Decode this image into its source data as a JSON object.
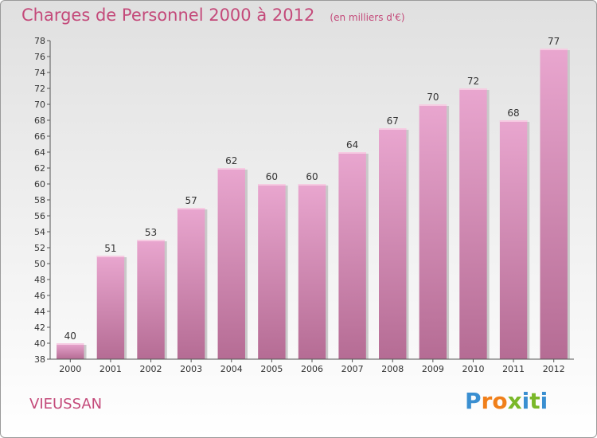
{
  "header": {
    "title": "Charges de Personnel 2000 à 2012",
    "subtitle": "(en milliers d'€)"
  },
  "footer": {
    "commune": "VIEUSSAN",
    "logo_letters": [
      "P",
      "r",
      "o",
      "x",
      "i",
      "t",
      "i"
    ],
    "logo_colors": [
      "#3a8fd1",
      "#f07f1a",
      "#f07f1a",
      "#7ab829",
      "#3a8fd1",
      "#7ab829",
      "#3a8fd1"
    ]
  },
  "colors": {
    "bar_top": "#e9a6cf",
    "bar_bottom": "#b56c94",
    "text": "#c44a7a",
    "axis": "#555555"
  },
  "chart_data": {
    "type": "bar",
    "title": "Charges de Personnel 2000 à 2012",
    "subtitle": "(en milliers d'€)",
    "categories": [
      "2000",
      "2001",
      "2002",
      "2003",
      "2004",
      "2005",
      "2006",
      "2007",
      "2008",
      "2009",
      "2010",
      "2011",
      "2012"
    ],
    "values": [
      40,
      51,
      53,
      57,
      62,
      60,
      60,
      64,
      67,
      70,
      72,
      68,
      77
    ],
    "data_labels": [
      "40",
      "51",
      "53",
      "57",
      "62",
      "60",
      "60",
      "64",
      "67",
      "70",
      "72",
      "68",
      "77"
    ],
    "ylim": [
      38,
      78
    ],
    "yticks": [
      38,
      40,
      42,
      44,
      46,
      48,
      50,
      52,
      54,
      56,
      58,
      60,
      62,
      64,
      66,
      68,
      70,
      72,
      74,
      76,
      78
    ],
    "grid": false
  }
}
